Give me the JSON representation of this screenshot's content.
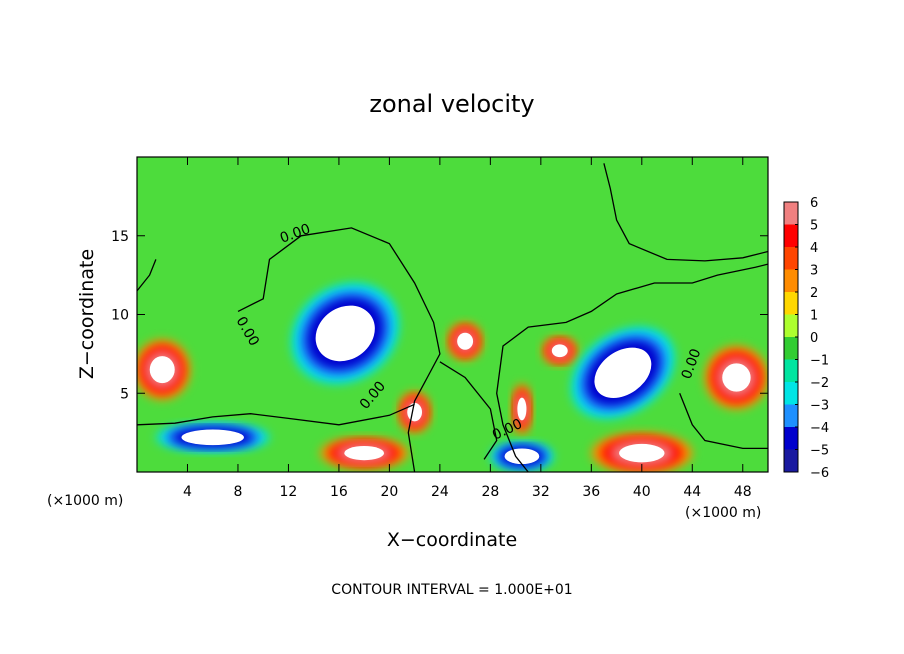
{
  "chart_data": {
    "type": "heatmap",
    "title": "zonal velocity",
    "xlabel": "X−coordinate",
    "ylabel": "Z−coordinate",
    "x_unit": "(×1000 m)",
    "y_unit": "(×1000 m)",
    "xlim": [
      0,
      50
    ],
    "ylim": [
      0,
      20
    ],
    "xticks": [
      4,
      8,
      12,
      16,
      20,
      24,
      28,
      32,
      36,
      40,
      44,
      48
    ],
    "yticks": [
      5,
      10,
      15
    ],
    "colorbar": {
      "levels": [
        6,
        5,
        4,
        3,
        2,
        1,
        0,
        -1,
        -2,
        -3,
        -4,
        -5,
        -6
      ],
      "labels": [
        "6",
        "5",
        "4",
        "3",
        "2",
        "1",
        "0",
        "−1",
        "−2",
        "−3",
        "−4",
        "−5",
        "−6"
      ],
      "colors": [
        "#f08080",
        "#ff0000",
        "#ff4500",
        "#ff8c00",
        "#ffd700",
        "#adff2f",
        "#32cd32",
        "#00e5a0",
        "#00e5e5",
        "#1e90ff",
        "#0000cd",
        "#1a1aa0",
        "#800080"
      ]
    },
    "contour_labels": [
      "0.00",
      "0.00",
      "0.00",
      "0.00",
      "0.00"
    ],
    "contour_interval_text": "CONTOUR INTERVAL = 1.000E+01",
    "features": [
      {
        "kind": "positive",
        "x": 2.0,
        "z": 6.5,
        "rx": 2.2,
        "rz": 1.9
      },
      {
        "kind": "positive",
        "x": 47.5,
        "z": 6.0,
        "rx": 2.5,
        "rz": 2.0
      },
      {
        "kind": "positive",
        "x": 40.0,
        "z": 1.2,
        "rx": 4.0,
        "rz": 1.3
      },
      {
        "kind": "positive",
        "x": 22.0,
        "z": 3.8,
        "rx": 1.3,
        "rz": 1.3
      },
      {
        "kind": "positive",
        "x": 26.0,
        "z": 8.3,
        "rx": 1.4,
        "rz": 1.2
      },
      {
        "kind": "positive",
        "x": 33.5,
        "z": 7.7,
        "rx": 1.4,
        "rz": 0.9
      },
      {
        "kind": "positive",
        "x": 30.5,
        "z": 4.0,
        "rx": 0.8,
        "rz": 1.6
      },
      {
        "kind": "positive",
        "x": 18.0,
        "z": 1.2,
        "rx": 3.5,
        "rz": 1.0
      },
      {
        "kind": "negative",
        "x": 16.5,
        "z": 8.8,
        "rx": 4.5,
        "rz": 3.0
      },
      {
        "kind": "negative",
        "x": 38.5,
        "z": 6.3,
        "rx": 4.5,
        "rz": 2.5
      },
      {
        "kind": "negative",
        "x": 6.0,
        "z": 2.2,
        "rx": 4.5,
        "rz": 0.9
      },
      {
        "kind": "negative",
        "x": 30.5,
        "z": 1.0,
        "rx": 2.5,
        "rz": 0.9
      }
    ]
  }
}
